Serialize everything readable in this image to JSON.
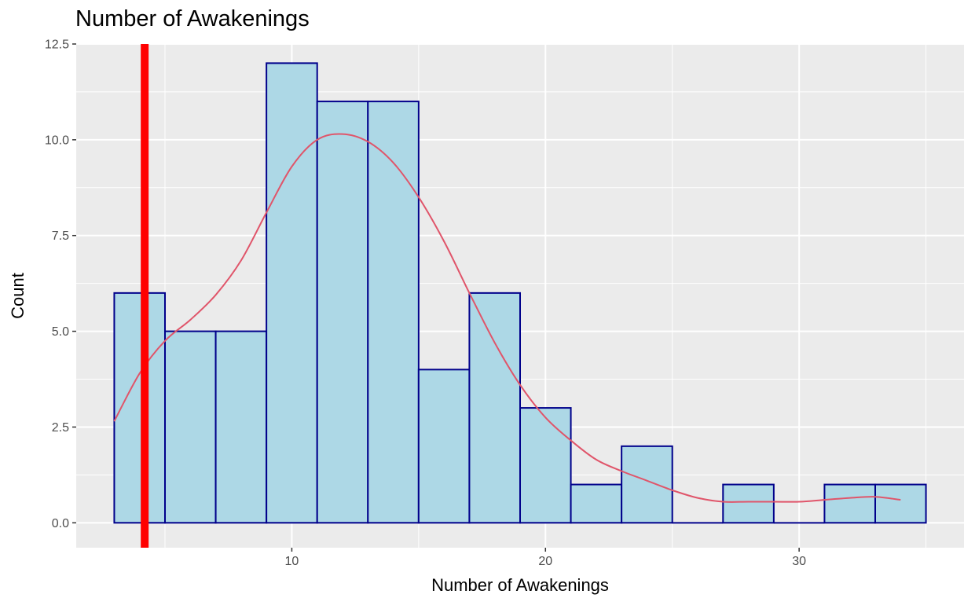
{
  "chart_data": {
    "type": "bar",
    "title": "Number of Awakenings",
    "xlabel": "Number of Awakenings",
    "ylabel": "Count",
    "xlim": [
      1.5,
      36.5
    ],
    "ylim": [
      -0.65,
      12.5
    ],
    "x_ticks": [
      10,
      20,
      30
    ],
    "y_ticks": [
      0.0,
      2.5,
      5.0,
      7.5,
      10.0,
      12.5
    ],
    "y_tick_labels": [
      "0.0",
      "2.5",
      "5.0",
      "7.5",
      "10.0",
      "12.5"
    ],
    "bin_width": 2,
    "bins": [
      {
        "x0": 3,
        "x1": 5,
        "count": 6
      },
      {
        "x0": 5,
        "x1": 7,
        "count": 5
      },
      {
        "x0": 7,
        "x1": 9,
        "count": 5
      },
      {
        "x0": 9,
        "x1": 11,
        "count": 12
      },
      {
        "x0": 11,
        "x1": 13,
        "count": 11
      },
      {
        "x0": 13,
        "x1": 15,
        "count": 11
      },
      {
        "x0": 15,
        "x1": 17,
        "count": 4
      },
      {
        "x0": 17,
        "x1": 19,
        "count": 6
      },
      {
        "x0": 19,
        "x1": 21,
        "count": 3
      },
      {
        "x0": 21,
        "x1": 23,
        "count": 1
      },
      {
        "x0": 23,
        "x1": 25,
        "count": 2
      },
      {
        "x0": 25,
        "x1": 27,
        "count": 0
      },
      {
        "x0": 27,
        "x1": 29,
        "count": 1
      },
      {
        "x0": 29,
        "x1": 31,
        "count": 0
      },
      {
        "x0": 31,
        "x1": 33,
        "count": 1
      },
      {
        "x0": 33,
        "x1": 35,
        "count": 1
      }
    ],
    "density_curve": {
      "x": [
        3,
        4,
        5,
        6,
        7,
        8,
        9,
        10,
        11,
        12,
        13,
        14,
        15,
        16,
        17,
        18,
        19,
        20,
        21,
        22,
        23,
        24,
        25,
        26,
        27,
        28,
        29,
        30,
        31,
        32,
        33,
        34
      ],
      "y": [
        2.65,
        3.9,
        4.75,
        5.3,
        5.95,
        6.85,
        8.1,
        9.3,
        10.0,
        10.15,
        9.95,
        9.4,
        8.5,
        7.35,
        6.0,
        4.7,
        3.6,
        2.75,
        2.15,
        1.65,
        1.35,
        1.1,
        0.85,
        0.65,
        0.55,
        0.55,
        0.55,
        0.55,
        0.6,
        0.65,
        0.68,
        0.6
      ],
      "color": "#e0556a"
    },
    "reference_line": {
      "x": 4.2,
      "color": "#ff0000"
    },
    "colors": {
      "bar_fill": "#add8e6",
      "bar_edge": "#00008b",
      "panel_bg": "#ebebeb",
      "grid": "#ffffff"
    },
    "grid": true,
    "legend": "none"
  }
}
